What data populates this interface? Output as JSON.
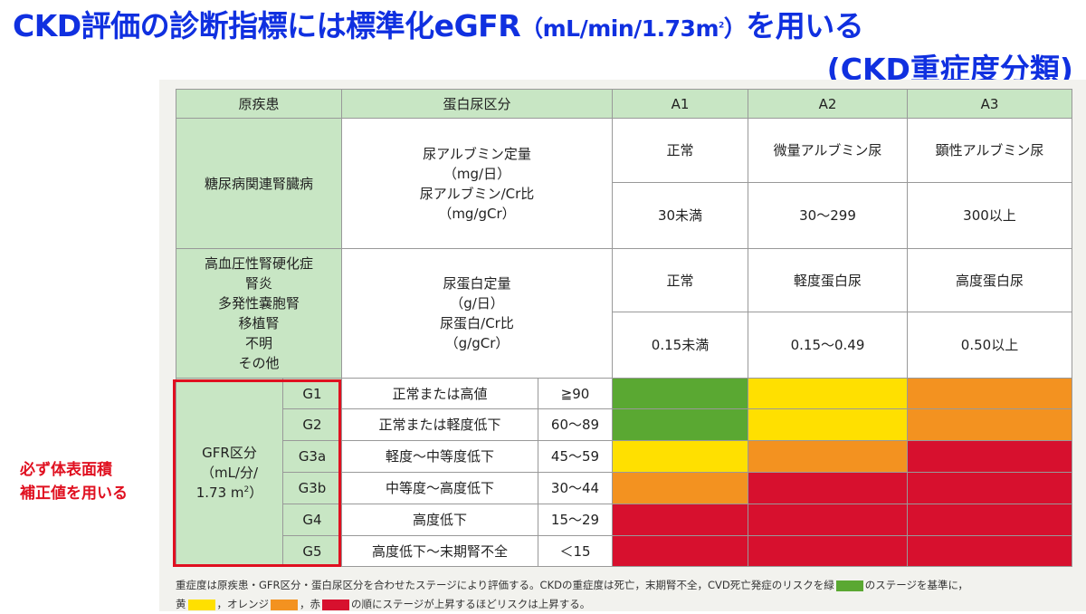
{
  "title": {
    "main": "CKD評価の診断指標には標準化eGFR",
    "unit": "（mL/min/1.73m",
    "unit_sup": "2",
    "unit_end": "）",
    "tail": "を用いる",
    "line2": "(CKD重症度分類)"
  },
  "table": {
    "header": {
      "disease": "原疾患",
      "proteinuria": "蛋白尿区分",
      "a1": "A1",
      "a2": "A2",
      "a3": "A3"
    },
    "diabetes": {
      "disease": "糖尿病関連腎臓病",
      "measure": [
        "尿アルブミン定量",
        "（mg/日）",
        "尿アルブミン/Cr比",
        "（mg/gCr）"
      ],
      "a1_label": "正常",
      "a2_label": "微量アルブミン尿",
      "a3_label": "顕性アルブミン尿",
      "a1_range": "30未満",
      "a2_range": "30〜299",
      "a3_range": "300以上"
    },
    "other": {
      "disease": [
        "高血圧性腎硬化症",
        "腎炎",
        "多発性嚢胞腎",
        "移植腎",
        "不明",
        "その他"
      ],
      "measure": [
        "尿蛋白定量",
        "（g/日）",
        "尿蛋白/Cr比",
        "（g/gCr）"
      ],
      "a1_label": "正常",
      "a2_label": "軽度蛋白尿",
      "a3_label": "高度蛋白尿",
      "a1_range": "0.15未満",
      "a2_range": "0.15〜0.49",
      "a3_range": "0.50以上"
    },
    "gfr": {
      "label": [
        "GFR区分",
        "（mL/分/",
        "1.73 m",
        "2",
        "）"
      ],
      "rows": [
        {
          "grade": "G1",
          "desc": "正常または高値",
          "range": "≧90",
          "colors": [
            "green",
            "yellow",
            "orange"
          ]
        },
        {
          "grade": "G2",
          "desc": "正常または軽度低下",
          "range": "60〜89",
          "colors": [
            "green",
            "yellow",
            "orange"
          ]
        },
        {
          "grade": "G3a",
          "desc": "軽度〜中等度低下",
          "range": "45〜59",
          "colors": [
            "yellow",
            "orange",
            "red"
          ]
        },
        {
          "grade": "G3b",
          "desc": "中等度〜高度低下",
          "range": "30〜44",
          "colors": [
            "orange",
            "red",
            "red"
          ]
        },
        {
          "grade": "G4",
          "desc": "高度低下",
          "range": "15〜29",
          "colors": [
            "red",
            "red",
            "red"
          ]
        },
        {
          "grade": "G5",
          "desc": "高度低下〜末期腎不全",
          "range": "＜15",
          "colors": [
            "red",
            "red",
            "red"
          ]
        }
      ]
    }
  },
  "sidenote": [
    "必ず体表面積",
    "補正値を用いる"
  ],
  "footer": {
    "line1a": "重症度は原疾患・GFR区分・蛋白尿区分を合わせたステージにより評価する。CKDの重症度は死亡，末期腎不全，CVD死亡発症のリスクを緑",
    "line1b": "のステージを基準に，",
    "line2a": "黄",
    "line2b": "，オレンジ",
    "line2c": "，赤",
    "line2d": "の順にステージが上昇するほどリスクは上昇する。"
  },
  "colors": {
    "green": "#5aa832",
    "yellow": "#ffe000",
    "orange": "#f39220",
    "red": "#d7102e",
    "title": "#1030e0",
    "accent": "#e01020"
  }
}
